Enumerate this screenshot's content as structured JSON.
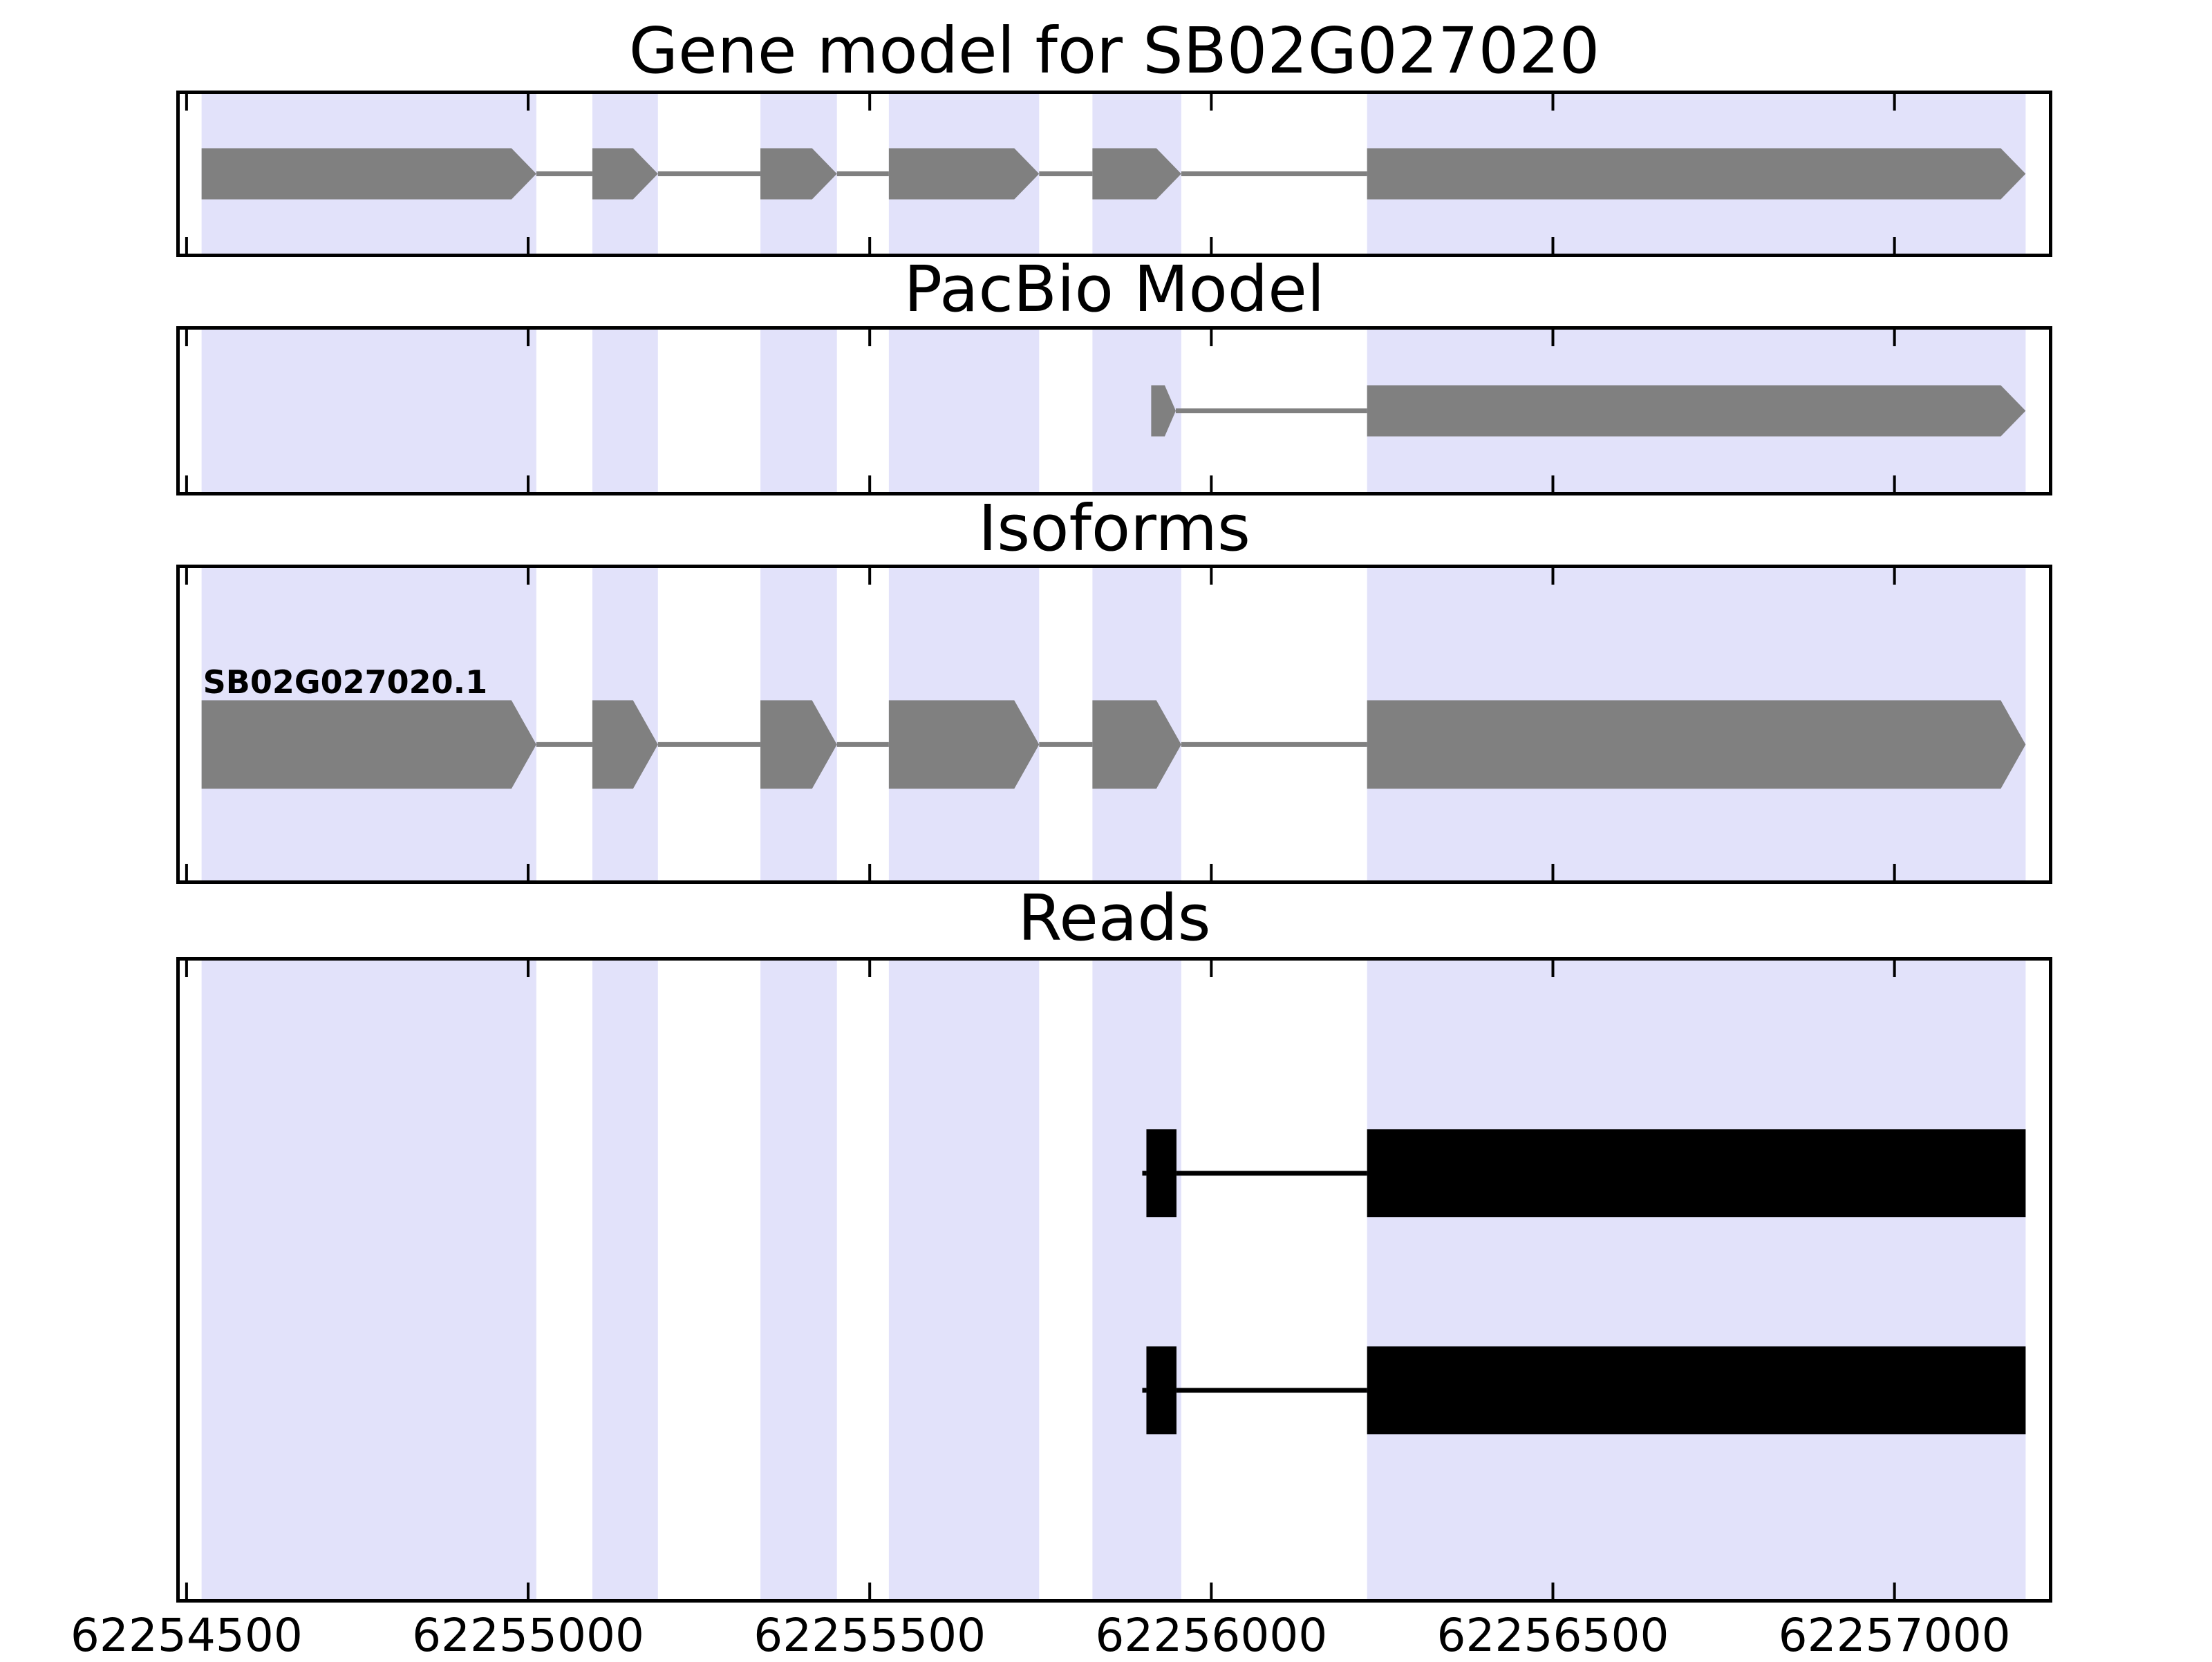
{
  "figure": {
    "background": "#ffffff",
    "text_color": "#000000"
  },
  "colors": {
    "highlight_band": "#e2e2fa",
    "gene_fill": "#808080",
    "read_fill": "#000000",
    "axis": "#000000"
  },
  "chart_data": {
    "type": "gene-model-tracks",
    "title": "Gene model for SB02G027020",
    "x_axis": {
      "domain": [
        62254490,
        62257226
      ],
      "ticks": [
        62254500,
        62255000,
        62255500,
        62256000,
        62256500,
        62257000
      ],
      "tick_labels": [
        "62254500",
        "62255000",
        "62255500",
        "62256000",
        "62256500",
        "62257000"
      ]
    },
    "highlight_regions": [
      [
        62254522,
        62255012
      ],
      [
        62255094,
        62255190
      ],
      [
        62255340,
        62255452
      ],
      [
        62255528,
        62255748
      ],
      [
        62255826,
        62255956
      ],
      [
        62256228,
        62257192
      ]
    ],
    "panels": [
      {
        "id": "gene-model",
        "title": "Gene model for SB02G027020",
        "tracks": [
          {
            "label": "",
            "glyph": "arrow",
            "color": "#808080",
            "exons": [
              [
                62254522,
                62255012
              ],
              [
                62255094,
                62255190
              ],
              [
                62255340,
                62255452
              ],
              [
                62255528,
                62255748
              ],
              [
                62255826,
                62255956
              ],
              [
                62256228,
                62257192
              ]
            ]
          }
        ]
      },
      {
        "id": "pacbio-model",
        "title": "PacBio Model",
        "tracks": [
          {
            "label": "",
            "glyph": "arrow",
            "color": "#808080",
            "exons": [
              [
                62255912,
                62255948
              ],
              [
                62256228,
                62257192
              ]
            ]
          }
        ]
      },
      {
        "id": "isoforms",
        "title": "Isoforms",
        "tracks": [
          {
            "label": "SB02G027020.1",
            "glyph": "arrow",
            "color": "#808080",
            "exons": [
              [
                62254522,
                62255012
              ],
              [
                62255094,
                62255190
              ],
              [
                62255340,
                62255452
              ],
              [
                62255528,
                62255748
              ],
              [
                62255826,
                62255956
              ],
              [
                62256228,
                62257192
              ]
            ]
          }
        ]
      },
      {
        "id": "reads",
        "title": "Reads",
        "tracks": [
          {
            "label": "",
            "glyph": "box",
            "color": "#000000",
            "exons": [
              [
                62255905,
                62255949
              ],
              [
                62256228,
                62257192
              ]
            ]
          },
          {
            "label": "",
            "glyph": "box",
            "color": "#000000",
            "exons": [
              [
                62255905,
                62255949
              ],
              [
                62256228,
                62257192
              ]
            ]
          }
        ]
      }
    ]
  }
}
